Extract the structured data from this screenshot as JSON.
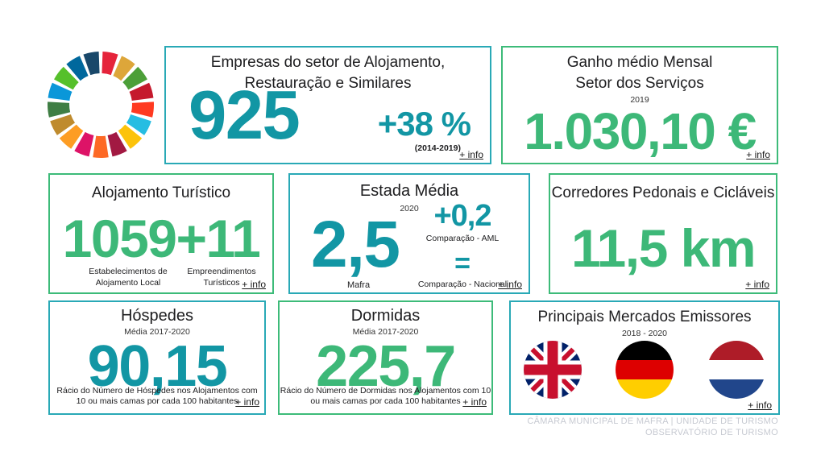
{
  "logo": {
    "name": "UN Sustainable Development Goals wheel",
    "sdg_colors": [
      "#E5243B",
      "#DDA63A",
      "#4C9F38",
      "#C5192D",
      "#FF3A21",
      "#26BDE2",
      "#FCC30B",
      "#A21942",
      "#FD6925",
      "#DD1367",
      "#FD9D24",
      "#BF8B2E",
      "#3F7E44",
      "#0A97D9",
      "#56C02B",
      "#00689D",
      "#19486A"
    ]
  },
  "colors": {
    "teal_text": "#1296A4",
    "teal_border": "#29A9B6",
    "green_text": "#3DB878",
    "green_border": "#3DBB79",
    "footer_gray": "#C7CAD2",
    "flag_uk": {
      "navy": "#012169",
      "red": "#C8102E",
      "white": "#FFFFFF"
    },
    "flag_germany": {
      "black": "#000000",
      "red": "#DD0000",
      "gold": "#FFCE00"
    },
    "flag_netherlands": {
      "red": "#AE1C28",
      "white": "#FFFFFF",
      "blue": "#21468B"
    }
  },
  "cards": {
    "empresas": {
      "title1": "Empresas do setor de Alojamento,",
      "title2": "Restauração e Similares",
      "value": "925",
      "delta": "+38 %",
      "delta_period": "(2014-2019)",
      "info": "+ info"
    },
    "ganho": {
      "title1": "Ganho médio Mensal",
      "title2": "Setor dos Serviços",
      "year": "2019",
      "value": "1.030,10 €",
      "info": "+ info"
    },
    "alojamento": {
      "title": "Alojamento Turístico",
      "value_local": "1059",
      "value_emp": "+11",
      "label_local1": "Estabelecimentos de",
      "label_local2": "Alojamento Local",
      "label_emp1": "Empreendimentos",
      "label_emp2": "Turísticos",
      "info": "+ info"
    },
    "estada": {
      "title": "Estada Média",
      "year": "2020",
      "value": "2,5",
      "value_label": "Mafra",
      "delta_aml": "+0,2",
      "delta_aml_label": "Comparação - AML",
      "delta_nacional": "=",
      "delta_nacional_label": "Comparação - Nacional",
      "info": "+ info"
    },
    "corredores": {
      "title": "Corredores Pedonais e Cicláveis",
      "value": "11,5 km",
      "info": "+ info"
    },
    "hospedes": {
      "title": "Hóspedes",
      "subtitle": "Média 2017-2020",
      "value": "90,15",
      "caption1": "Rácio do Número de Hóspedes nos Alojamentos com",
      "caption2": "10 ou mais camas por cada 100 habitantes",
      "info": "+ info"
    },
    "dormidas": {
      "title": "Dormidas",
      "subtitle": "Média 2017-2020",
      "value": "225,7",
      "caption1": "Rácio do Número de Dormidas nos Alojamentos com 10",
      "caption2": "ou mais camas por cada 100 habitantes",
      "info": "+ info"
    },
    "mercados": {
      "title": "Principais Mercados Emissores",
      "period": "2018 - 2020",
      "flags": [
        "United Kingdom",
        "Germany",
        "Netherlands"
      ],
      "info": "+ info"
    }
  },
  "footer": {
    "line1": "CÂMARA MUNICIPAL DE MAFRA | UNIDADE DE TURISMO",
    "line2": "OBSERVATÓRIO DE TURISMO"
  }
}
